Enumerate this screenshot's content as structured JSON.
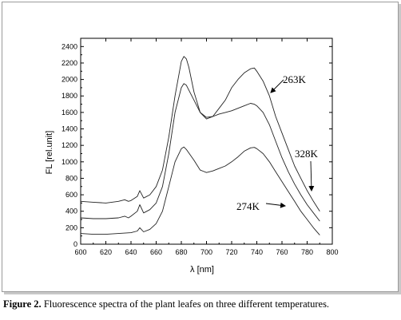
{
  "chart_data": {
    "type": "line",
    "xlabel": "λ  [nm]",
    "ylabel": "FL  [rel.unit]",
    "xlim": [
      600,
      800
    ],
    "ylim": [
      0,
      2500
    ],
    "xticks": [
      600,
      620,
      640,
      660,
      680,
      700,
      720,
      740,
      760,
      780,
      800
    ],
    "yticks": [
      0,
      200,
      400,
      600,
      800,
      1000,
      1200,
      1400,
      1600,
      1800,
      2000,
      2200,
      2400
    ],
    "grid": false,
    "colors": {
      "line": "#222222",
      "axis": "#000000"
    },
    "series": [
      {
        "name": "263K",
        "x": [
          600,
          610,
          620,
          630,
          635,
          638,
          640,
          645,
          647,
          650,
          655,
          660,
          665,
          670,
          675,
          680,
          682,
          684,
          686,
          690,
          695,
          700,
          705,
          710,
          715,
          720,
          725,
          730,
          735,
          738,
          740,
          745,
          750,
          755,
          760,
          765,
          770,
          775,
          780,
          785,
          790
        ],
        "y": [
          520,
          510,
          500,
          520,
          540,
          520,
          530,
          580,
          650,
          560,
          600,
          700,
          900,
          1300,
          1800,
          2220,
          2280,
          2250,
          2150,
          1850,
          1600,
          1520,
          1550,
          1650,
          1750,
          1900,
          2000,
          2080,
          2130,
          2140,
          2100,
          1980,
          1800,
          1550,
          1350,
          1150,
          950,
          800,
          650,
          520,
          400
        ]
      },
      {
        "name": "328K",
        "x": [
          600,
          610,
          620,
          630,
          635,
          638,
          640,
          645,
          647,
          650,
          655,
          660,
          665,
          670,
          675,
          680,
          682,
          684,
          690,
          695,
          700,
          705,
          710,
          715,
          720,
          725,
          730,
          735,
          738,
          740,
          745,
          750,
          755,
          760,
          765,
          770,
          775,
          780,
          785,
          790
        ],
        "y": [
          320,
          310,
          310,
          320,
          340,
          320,
          340,
          400,
          480,
          380,
          420,
          500,
          700,
          1100,
          1600,
          1900,
          1950,
          1930,
          1750,
          1600,
          1540,
          1550,
          1580,
          1600,
          1620,
          1650,
          1680,
          1710,
          1700,
          1680,
          1600,
          1450,
          1250,
          1050,
          880,
          730,
          600,
          480,
          380,
          280
        ]
      },
      {
        "name": "274K",
        "x": [
          600,
          610,
          620,
          630,
          640,
          645,
          647,
          650,
          655,
          660,
          665,
          670,
          675,
          680,
          682,
          684,
          690,
          695,
          700,
          705,
          710,
          715,
          720,
          725,
          730,
          735,
          738,
          740,
          745,
          750,
          755,
          760,
          765,
          770,
          775,
          780,
          785,
          790
        ],
        "y": [
          130,
          120,
          120,
          130,
          140,
          160,
          200,
          150,
          180,
          250,
          400,
          700,
          1000,
          1160,
          1180,
          1150,
          1020,
          900,
          870,
          890,
          920,
          950,
          1000,
          1060,
          1130,
          1170,
          1175,
          1160,
          1100,
          1000,
          880,
          760,
          640,
          520,
          400,
          300,
          200,
          110
        ]
      }
    ],
    "annotations": [
      "263K",
      "328K",
      "274K"
    ]
  },
  "caption": {
    "label": "Figure 2.",
    "text": " Fluorescence spectra of the plant leafes on three different temperatures."
  }
}
